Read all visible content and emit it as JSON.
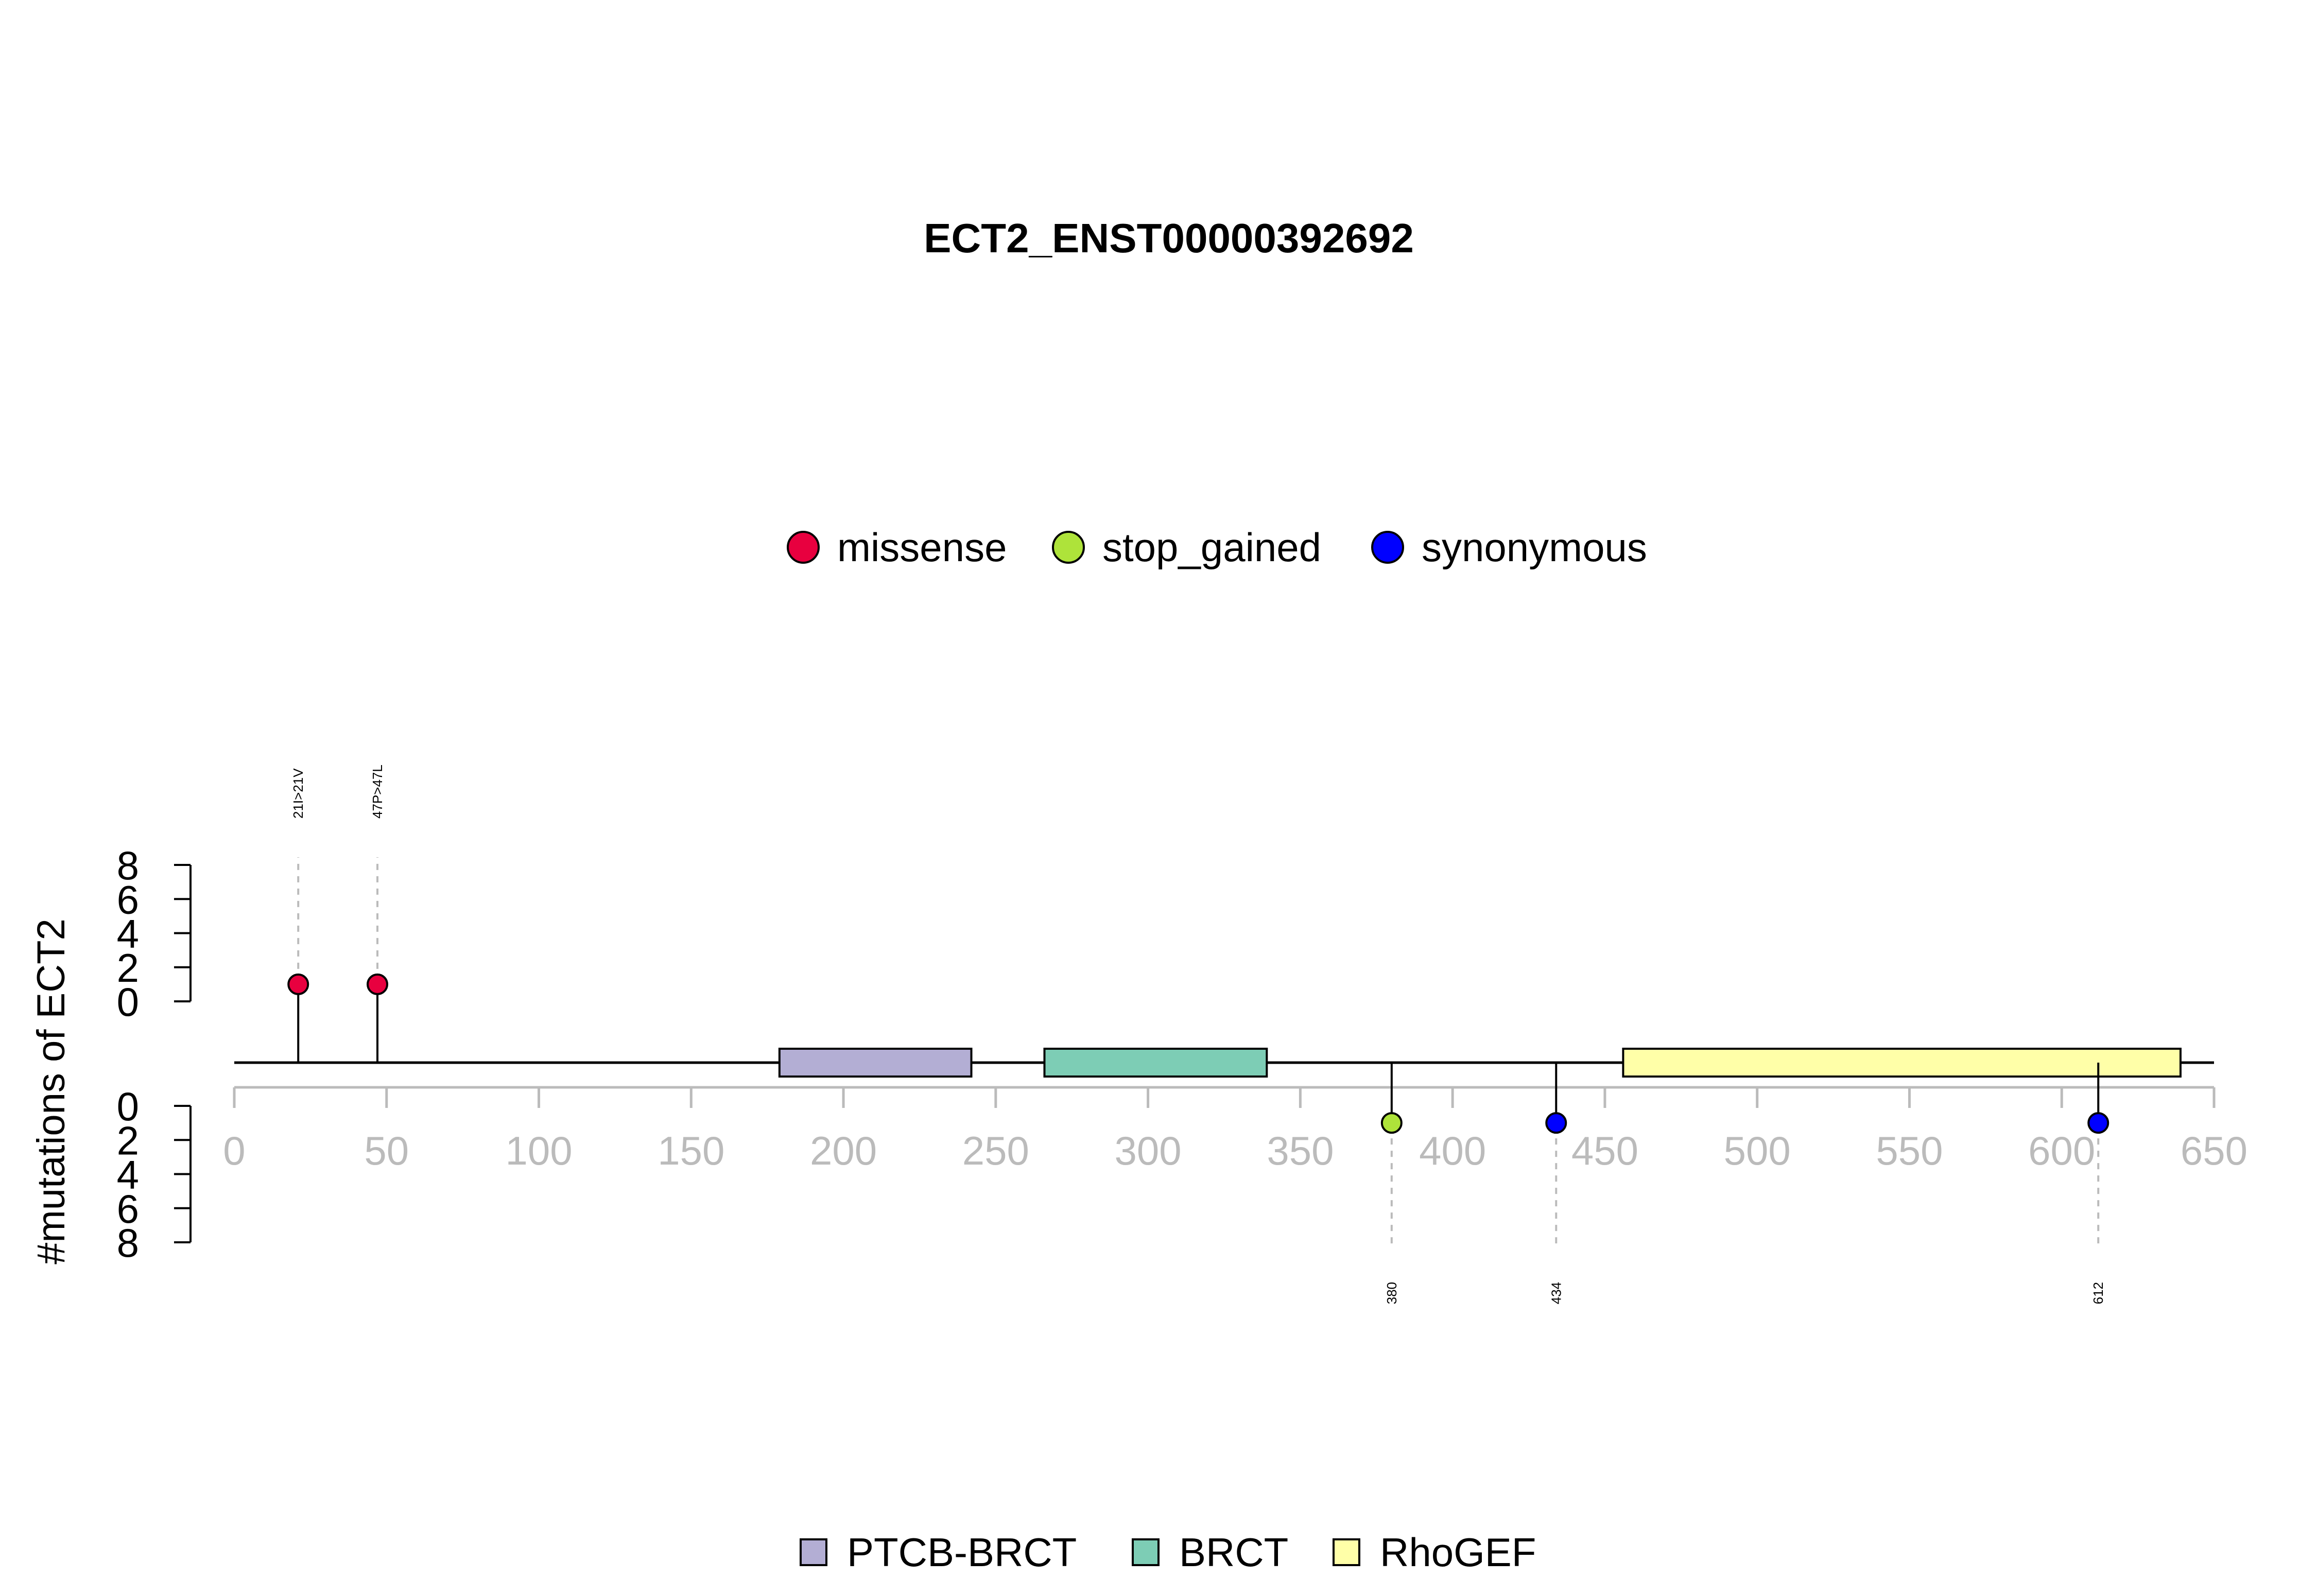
{
  "chart_data": {
    "type": "lollipop",
    "title": "ECT2_ENST00000392692",
    "ylabel": "#mutations of ECT2",
    "xlim": [
      0,
      650
    ],
    "x_ticks": [
      "0",
      "50",
      "100",
      "150",
      "200",
      "250",
      "300",
      "350",
      "400",
      "450",
      "500",
      "550",
      "600",
      "650"
    ],
    "y_ticks_top": [
      "0",
      "2",
      "4",
      "6",
      "8"
    ],
    "y_ticks_bottom": [
      "0",
      "2",
      "4",
      "6",
      "8"
    ],
    "ylim": [
      0,
      8
    ],
    "legend_mutations": [
      {
        "name": "missense",
        "color": "#E8003F"
      },
      {
        "name": "stop_gained",
        "color": "#AEE33A"
      },
      {
        "name": "synonymous",
        "color": "#0000FF"
      }
    ],
    "mutations": [
      {
        "pos": 21,
        "count": 1,
        "type": "missense",
        "label": "21I>21V",
        "side": "top"
      },
      {
        "pos": 47,
        "count": 1,
        "type": "missense",
        "label": "47P>47L",
        "side": "top"
      },
      {
        "pos": 380,
        "count": 1,
        "type": "stop_gained",
        "label": "380",
        "side": "bottom"
      },
      {
        "pos": 434,
        "count": 1,
        "type": "synonymous",
        "label": "434",
        "side": "bottom"
      },
      {
        "pos": 612,
        "count": 1,
        "type": "synonymous",
        "label": "612",
        "side": "bottom"
      }
    ],
    "domains": [
      {
        "name": "PTCB-BRCT",
        "start": 179,
        "end": 242,
        "color": "#B3AED4"
      },
      {
        "name": "BRCT",
        "start": 266,
        "end": 339,
        "color": "#7DCDB5"
      },
      {
        "name": "RhoGEF",
        "start": 456,
        "end": 639,
        "color": "#FFFFA8"
      }
    ],
    "protein_length": 651,
    "colors": {
      "axis_gray": "#BBBBBB",
      "guide_gray": "#BBBBBB",
      "line": "#000000"
    }
  }
}
